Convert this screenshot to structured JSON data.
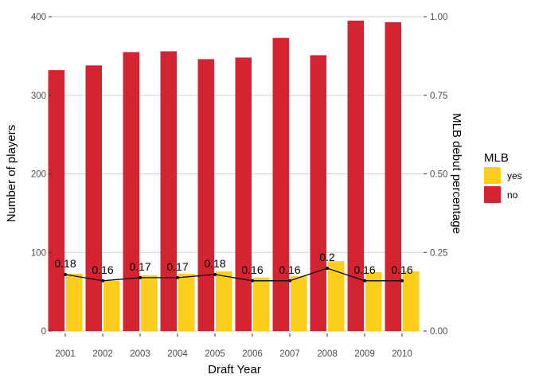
{
  "chart_data": {
    "type": "bar",
    "categories": [
      "2001",
      "2002",
      "2003",
      "2004",
      "2005",
      "2006",
      "2007",
      "2008",
      "2009",
      "2010"
    ],
    "series": [
      {
        "name": "yes",
        "values": [
          73,
          64,
          71,
          73,
          76,
          68,
          70,
          89,
          75,
          76
        ]
      },
      {
        "name": "no",
        "values": [
          332,
          338,
          355,
          356,
          346,
          348,
          373,
          351,
          395,
          393
        ]
      }
    ],
    "line_series": {
      "values": [
        0.18,
        0.16,
        0.17,
        0.17,
        0.18,
        0.16,
        0.16,
        0.2,
        0.16,
        0.16
      ],
      "labels": [
        "0.18",
        "0.16",
        "0.17",
        "0.17",
        "0.18",
        "0.16",
        "0.16",
        "0.2",
        "0.16",
        "0.16"
      ]
    },
    "xlabel": "Draft Year",
    "ylabel": "Number of players",
    "ylabel_right": "MLB debut percentage",
    "ylim": [
      0,
      400
    ],
    "ylim_right": [
      0,
      1
    ],
    "yticks": [
      0,
      100,
      200,
      300,
      400
    ],
    "yticks_labels": [
      "0",
      "100",
      "200",
      "300",
      "400"
    ],
    "yticks_right": [
      0,
      0.25,
      0.5,
      0.75,
      1
    ],
    "yticks_right_labels": [
      "0.00",
      "0.25",
      "0.50",
      "0.75",
      "1.00"
    ],
    "legend": {
      "title": "MLB",
      "position": "right",
      "entries": [
        "yes",
        "no"
      ]
    },
    "colors": {
      "yes": "#FECE1D",
      "no": "#D42432",
      "line": "#000000",
      "grid": "#d0d0d0"
    },
    "grid": true
  }
}
